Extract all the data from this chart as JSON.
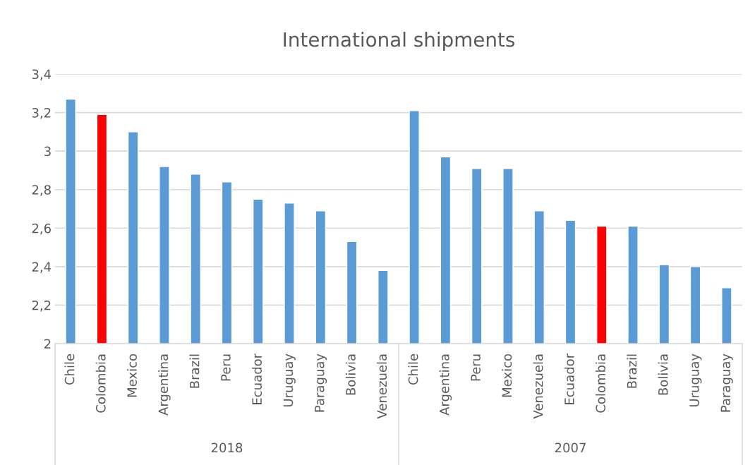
{
  "chart_data": {
    "type": "bar",
    "title": "International shipments",
    "categories": [
      "Chile",
      "Colombia",
      "Mexico",
      "Argentina",
      "Brazil",
      "Peru",
      "Ecuador",
      "Uruguay",
      "Paraguay",
      "Bolivia",
      "Venezuela",
      "Chile",
      "Argentina",
      "Peru",
      "Mexico",
      "Venezuela",
      "Ecuador",
      "Colombia",
      "Brazil",
      "Bolivia",
      "Uruguay",
      "Paraguay"
    ],
    "values": [
      3.27,
      3.19,
      3.1,
      2.92,
      2.88,
      2.84,
      2.75,
      2.73,
      2.69,
      2.53,
      2.38,
      3.21,
      2.97,
      2.91,
      2.91,
      2.69,
      2.64,
      2.61,
      2.61,
      2.41,
      2.4,
      2.29
    ],
    "colors": [
      "#5b9bd5",
      "#ff0000",
      "#5b9bd5",
      "#5b9bd5",
      "#5b9bd5",
      "#5b9bd5",
      "#5b9bd5",
      "#5b9bd5",
      "#5b9bd5",
      "#5b9bd5",
      "#5b9bd5",
      "#5b9bd5",
      "#5b9bd5",
      "#5b9bd5",
      "#5b9bd5",
      "#5b9bd5",
      "#5b9bd5",
      "#ff0000",
      "#5b9bd5",
      "#5b9bd5",
      "#5b9bd5",
      "#5b9bd5"
    ],
    "annotations": [
      "2018",
      "2007"
    ],
    "ylim": [
      2,
      3.4
    ],
    "yticks": [
      2,
      {
        "value": 2.2,
        "label": "2,2"
      },
      {
        "value": 2.4,
        "label": "2,4"
      },
      {
        "value": 2.6,
        "label": "2,6"
      },
      {
        "value": 2.8,
        "label": "2,8"
      },
      3,
      {
        "value": 3.2,
        "label": "3,2"
      },
      {
        "value": 3.4,
        "label": "3,4"
      }
    ],
    "grid": "y"
  }
}
